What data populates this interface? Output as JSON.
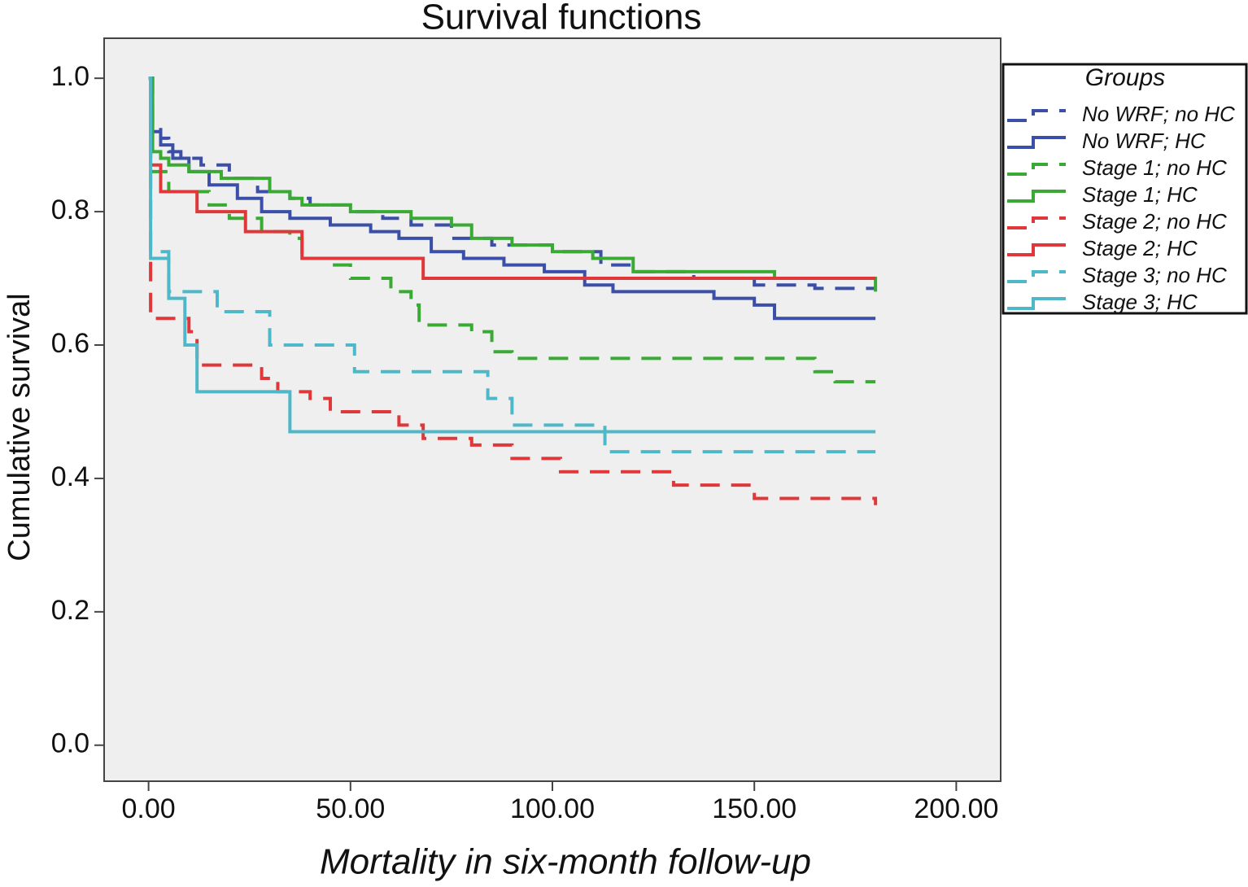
{
  "chart_data": {
    "type": "step",
    "title": "Survival functions",
    "x_label": "Mortality in six-month follow-up",
    "y_label": "Cumulative survival",
    "legend_title": "Groups",
    "legend_position": "right",
    "xlim": [
      -11,
      211
    ],
    "ylim": [
      -0.054,
      1.06
    ],
    "xticks": [
      {
        "value": 0,
        "label": "0.00"
      },
      {
        "value": 50,
        "label": "50.00"
      },
      {
        "value": 100,
        "label": "100.00"
      },
      {
        "value": 150,
        "label": "150.00"
      },
      {
        "value": 200,
        "label": "200.00"
      }
    ],
    "yticks": [
      {
        "value": 0,
        "label": "0.0"
      },
      {
        "value": 0.2,
        "label": "0.2"
      },
      {
        "value": 0.4,
        "label": "0.4"
      },
      {
        "value": 0.6,
        "label": "0.6"
      },
      {
        "value": 0.8,
        "label": "0.8"
      },
      {
        "value": 1,
        "label": "1.0"
      }
    ],
    "series": [
      {
        "name": "No WRF; no HC",
        "color": "#3b4fa8",
        "dashed": true,
        "x": [
          0,
          1,
          3,
          5,
          8,
          13,
          20,
          27,
          35,
          40,
          50,
          58,
          65,
          75,
          85,
          100,
          112,
          120,
          135,
          150,
          165,
          180
        ],
        "values": [
          1,
          0.93,
          0.91,
          0.89,
          0.88,
          0.87,
          0.85,
          0.83,
          0.82,
          0.81,
          0.8,
          0.79,
          0.78,
          0.76,
          0.75,
          0.74,
          0.72,
          0.71,
          0.7,
          0.69,
          0.685,
          0.685
        ]
      },
      {
        "name": "No WRF;  HC",
        "color": "#3b4fa8",
        "dashed": false,
        "x": [
          0,
          1,
          3,
          6,
          10,
          15,
          22,
          28,
          35,
          45,
          55,
          62,
          70,
          78,
          88,
          98,
          108,
          115,
          140,
          150,
          155,
          180
        ],
        "values": [
          1,
          0.92,
          0.9,
          0.88,
          0.86,
          0.84,
          0.82,
          0.8,
          0.79,
          0.78,
          0.77,
          0.76,
          0.74,
          0.73,
          0.72,
          0.71,
          0.69,
          0.68,
          0.67,
          0.66,
          0.64,
          0.64
        ]
      },
      {
        "name": "Stage 1; no HC",
        "color": "#3aaa35",
        "dashed": true,
        "x": [
          0,
          0.5,
          5,
          15,
          20,
          28,
          35,
          38,
          45,
          50,
          60,
          65,
          67,
          80,
          85,
          90,
          165,
          170,
          180
        ],
        "values": [
          1,
          0.86,
          0.83,
          0.81,
          0.79,
          0.77,
          0.76,
          0.73,
          0.72,
          0.7,
          0.68,
          0.66,
          0.63,
          0.62,
          0.59,
          0.58,
          0.56,
          0.545,
          0.545
        ]
      },
      {
        "name": "Stage 1; HC",
        "color": "#3aaa35",
        "dashed": false,
        "x": [
          0,
          1,
          3,
          5,
          10,
          18,
          30,
          35,
          38,
          50,
          65,
          75,
          80,
          90,
          100,
          110,
          120,
          155,
          180
        ],
        "values": [
          1,
          0.89,
          0.88,
          0.87,
          0.86,
          0.85,
          0.83,
          0.82,
          0.81,
          0.8,
          0.79,
          0.78,
          0.76,
          0.75,
          0.74,
          0.73,
          0.71,
          0.7,
          0.68
        ]
      },
      {
        "name": "Stage 2; no HC",
        "color": "#e0383a",
        "dashed": true,
        "x": [
          0,
          0.5,
          10,
          12,
          28,
          32,
          40,
          45,
          62,
          68,
          80,
          90,
          102,
          130,
          150,
          180
        ],
        "values": [
          1,
          0.64,
          0.62,
          0.57,
          0.55,
          0.53,
          0.52,
          0.5,
          0.48,
          0.46,
          0.45,
          0.43,
          0.41,
          0.39,
          0.37,
          0.36
        ]
      },
      {
        "name": "Stage 2; HC",
        "color": "#e0383a",
        "dashed": false,
        "x": [
          0,
          0.5,
          3,
          12,
          24,
          38,
          68,
          180
        ],
        "values": [
          1,
          0.87,
          0.83,
          0.8,
          0.77,
          0.73,
          0.7,
          0.7
        ]
      },
      {
        "name": "Stage 3; no HC",
        "color": "#4fb8c8",
        "dashed": true,
        "x": [
          0,
          0.5,
          5,
          17,
          30,
          51,
          84,
          90,
          113,
          180
        ],
        "values": [
          1,
          0.74,
          0.68,
          0.65,
          0.6,
          0.56,
          0.52,
          0.48,
          0.44,
          0.44
        ]
      },
      {
        "name": "Stage 3; HC",
        "color": "#4fb8c8",
        "dashed": false,
        "x": [
          0,
          0.5,
          5,
          9,
          12,
          35,
          180
        ],
        "values": [
          1,
          0.73,
          0.67,
          0.6,
          0.53,
          0.47,
          0.47
        ]
      }
    ]
  }
}
